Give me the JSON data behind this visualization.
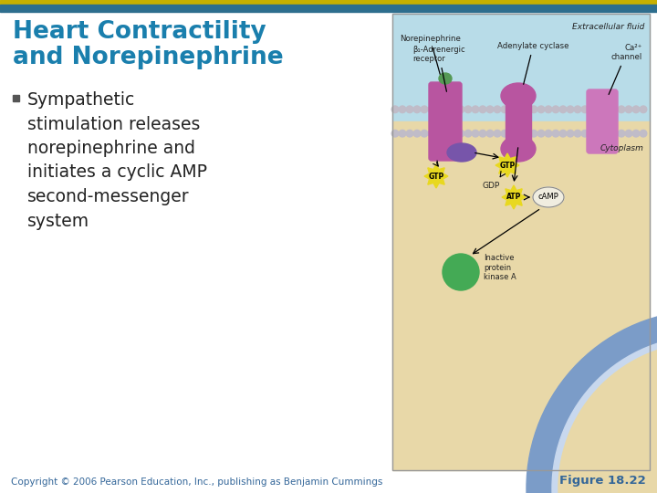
{
  "title_line1": "Heart Contractility",
  "title_line2": "and Norepinephrine",
  "title_color": "#1a7fad",
  "bullet_text": "Sympathetic\nstimulation releases\nnorepinephrine and\ninitiates a cyclic AMP\nsecond-messenger\nsystem",
  "bullet_color": "#222222",
  "bullet_marker_color": "#555555",
  "footer_text": "Copyright © 2006 Pearson Education, Inc., publishing as Benjamin Cummings",
  "footer_right": "Figure 18.22",
  "footer_color": "#336699",
  "top_bar_gold": "#c8b000",
  "top_bar_blue": "#2e6e8e",
  "bg_color": "#ffffff",
  "diagram_bg_top": "#b8dce8",
  "diagram_bg_bottom": "#e8d8a8",
  "diagram_border": "#999999",
  "membrane_gray": "#c0bcc8",
  "receptor_color": "#b855a0",
  "gprotein_color": "#7755aa",
  "adenylate_color": "#b855a0",
  "ca_channel_color": "#cc77bb",
  "gtp_yellow": "#e8d820",
  "kinase_green": "#44aa55",
  "label_color": "#222222",
  "cell_body_blue": "#7b9cc8",
  "cell_body_inner": "#c8d8ee",
  "cell_channel_pink": "#d977aa",
  "norepinephrine_green": "#559955",
  "arrow_color": "#222222"
}
